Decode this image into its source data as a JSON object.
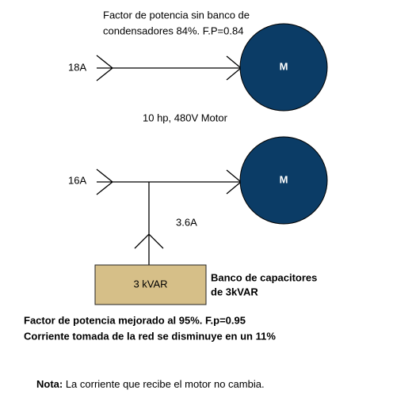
{
  "top": {
    "title_lines": [
      "Factor de potencia sin banco de",
      "condensadores 84%. F.P=0.84"
    ],
    "current": "18A",
    "motor": "M",
    "motor_label": "10 hp, 480V Motor"
  },
  "bottom": {
    "current": "16A",
    "motor": "M",
    "capacitor_current": "3.6A",
    "capacitor": "3 kVAR",
    "capacitor_label_lines": [
      "Banco de capacitores",
      "de 3kVAR"
    ]
  },
  "results": [
    "Factor de potencia mejorado al 95%. F.p=0.95",
    "Corriente tomada de la red se disminuye en un 11%"
  ],
  "note": {
    "label": "Nota:",
    "text": " La corriente que recibe el motor no cambia."
  }
}
